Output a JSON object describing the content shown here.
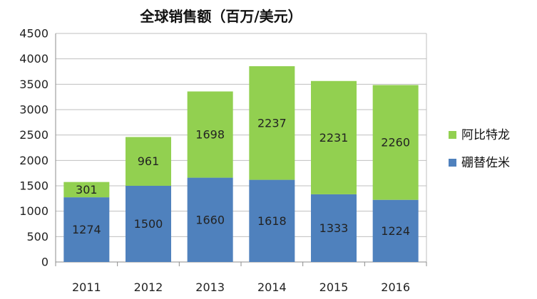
{
  "chart_data": {
    "type": "bar",
    "stacked": true,
    "title": "全球销售额（百万/美元）",
    "categories": [
      "2011",
      "2012",
      "2013",
      "2014",
      "2015",
      "2016"
    ],
    "series": [
      {
        "name": "硼替佐米",
        "color": "#4f81bd",
        "values": [
          1274,
          1500,
          1660,
          1618,
          1333,
          1224
        ]
      },
      {
        "name": "阿比特龙",
        "color": "#92d050",
        "values": [
          301,
          961,
          1698,
          2237,
          2231,
          2260
        ]
      }
    ],
    "ylim": [
      0,
      4500
    ],
    "yticks": [
      0,
      500,
      1000,
      1500,
      2000,
      2500,
      3000,
      3500,
      4000,
      4500
    ],
    "grid": true,
    "legend_position": "right"
  }
}
